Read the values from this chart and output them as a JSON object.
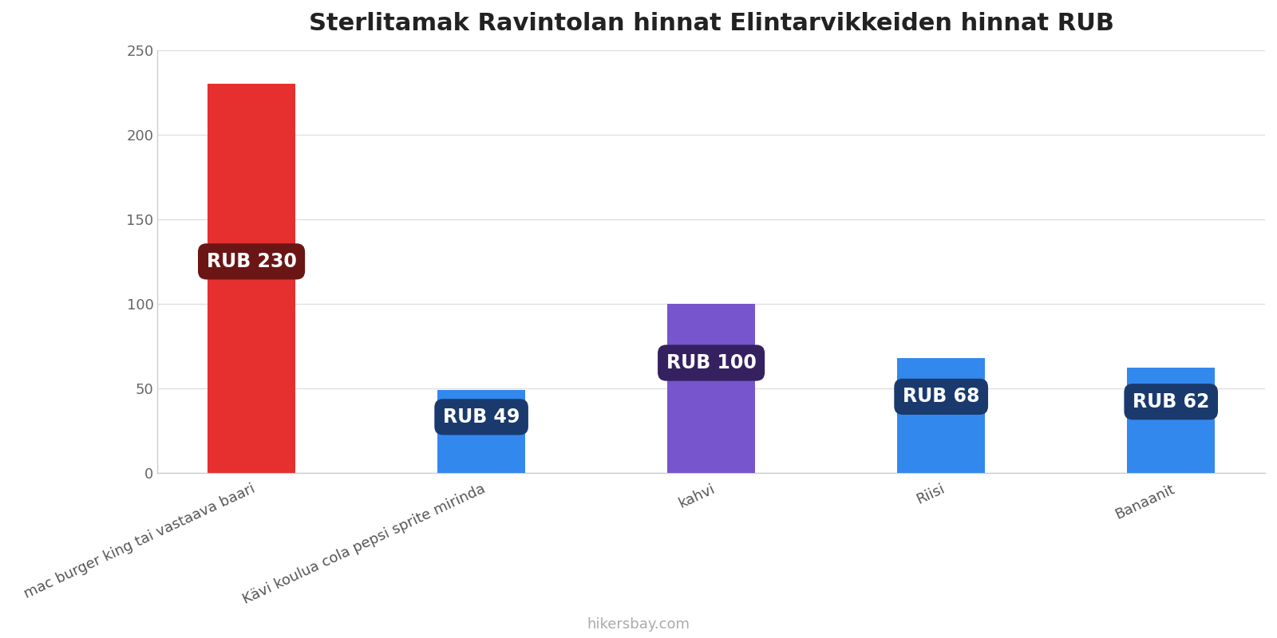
{
  "title": "Sterlitamak Ravintolan hinnat Elintarvikkeiden hinnat RUB",
  "categories": [
    "mac burger king tai vastaava baari",
    "Kävi koulua cola pepsi sprite mirinda",
    "kahvi",
    "Riisi",
    "Banaanit"
  ],
  "values": [
    230,
    49,
    100,
    68,
    62
  ],
  "bar_colors": [
    "#e63030",
    "#3388ee",
    "#7755cc",
    "#3388ee",
    "#3388ee"
  ],
  "label_bg_colors": [
    "#6b1515",
    "#1a3a6e",
    "#352060",
    "#1a3a6e",
    "#1a3a6e"
  ],
  "labels": [
    "RUB 230",
    "RUB 49",
    "RUB 100",
    "RUB 68",
    "RUB 62"
  ],
  "ylim": [
    0,
    250
  ],
  "yticks": [
    0,
    50,
    100,
    150,
    200,
    250
  ],
  "footer_text": "hikersbay.com",
  "title_fontsize": 22,
  "label_fontsize": 17,
  "tick_fontsize": 13,
  "footer_fontsize": 13,
  "background_color": "#ffffff",
  "grid_color": "#e0e0e0",
  "bar_width": 0.38,
  "label_y_offset": [
    125,
    33,
    65,
    45,
    42
  ]
}
